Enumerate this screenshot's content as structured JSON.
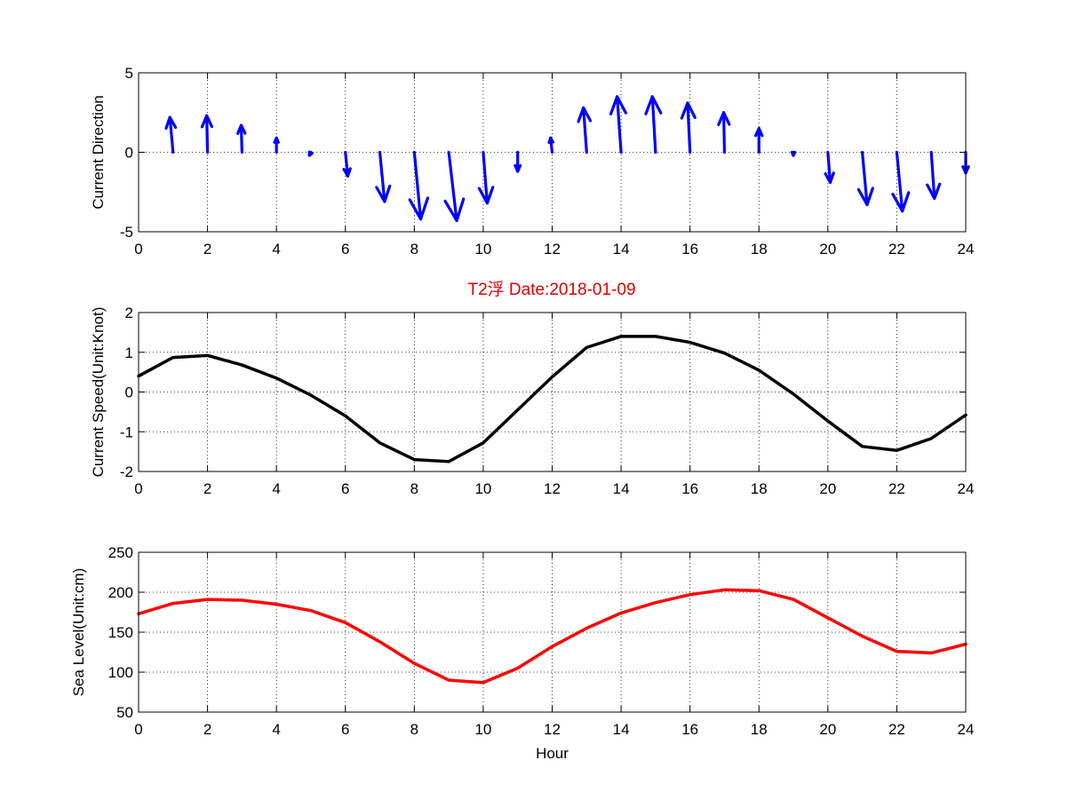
{
  "figure": {
    "title": "T2浮   Date:2018-01-09",
    "title_color": "#e00000",
    "background": "#ffffff"
  },
  "chart_data": [
    {
      "type": "quiver",
      "ylabel": "Current Direction",
      "xlabel": "",
      "xlim": [
        0,
        24
      ],
      "ylim": [
        -5,
        5
      ],
      "xticks": [
        "0",
        "2",
        "4",
        "6",
        "8",
        "10",
        "12",
        "14",
        "16",
        "18",
        "20",
        "22",
        "24"
      ],
      "yticks": [
        "-5",
        "0",
        "5"
      ],
      "grid": true,
      "color": "#0000ff",
      "x": [
        1,
        2,
        3,
        4,
        5,
        6,
        7,
        8,
        9,
        10,
        11,
        12,
        13,
        14,
        15,
        16,
        17,
        18,
        19,
        20,
        21,
        22,
        23,
        24
      ],
      "u": [
        -0.2,
        -0.05,
        -0.05,
        0.0,
        -0.1,
        0.15,
        0.3,
        0.4,
        0.5,
        0.25,
        0.0,
        -0.1,
        -0.2,
        -0.25,
        -0.2,
        -0.15,
        -0.05,
        0.0,
        0.0,
        0.15,
        0.3,
        0.35,
        0.2,
        0.0
      ],
      "v": [
        2.2,
        2.3,
        1.7,
        0.9,
        -0.2,
        -1.5,
        -3.1,
        -4.2,
        -4.3,
        -3.2,
        -1.2,
        0.9,
        2.8,
        3.5,
        3.5,
        3.1,
        2.5,
        1.5,
        -0.2,
        -1.9,
        -3.3,
        -3.7,
        -2.9,
        -1.3
      ]
    },
    {
      "type": "line",
      "ylabel": "Current Speed(Unit:Knot)",
      "xlabel": "",
      "xlim": [
        0,
        24
      ],
      "ylim": [
        -2,
        2
      ],
      "xticks": [
        "0",
        "2",
        "4",
        "6",
        "8",
        "10",
        "12",
        "14",
        "16",
        "18",
        "20",
        "22",
        "24"
      ],
      "yticks": [
        "-2",
        "-1",
        "0",
        "1",
        "2"
      ],
      "grid": true,
      "color": "#000000",
      "x": [
        0,
        1,
        2,
        3,
        4,
        5,
        6,
        7,
        8,
        9,
        10,
        11,
        12,
        13,
        14,
        15,
        16,
        17,
        18,
        19,
        20,
        21,
        22,
        23,
        24
      ],
      "y": [
        0.4,
        0.87,
        0.92,
        0.68,
        0.35,
        -0.08,
        -0.6,
        -1.28,
        -1.7,
        -1.75,
        -1.28,
        -0.45,
        0.38,
        1.12,
        1.4,
        1.4,
        1.25,
        0.98,
        0.55,
        -0.05,
        -0.73,
        -1.37,
        -1.47,
        -1.17,
        -0.58
      ]
    },
    {
      "type": "line",
      "ylabel": "Sea Level(Unit:cm)",
      "xlabel": "Hour",
      "xlim": [
        0,
        24
      ],
      "ylim": [
        50,
        250
      ],
      "xticks": [
        "0",
        "2",
        "4",
        "6",
        "8",
        "10",
        "12",
        "14",
        "16",
        "18",
        "20",
        "22",
        "24"
      ],
      "yticks": [
        "50",
        "100",
        "150",
        "200",
        "250"
      ],
      "grid": true,
      "color": "#ff0000",
      "x": [
        0,
        1,
        2,
        3,
        4,
        5,
        6,
        7,
        8,
        9,
        10,
        11,
        12,
        13,
        14,
        15,
        16,
        17,
        18,
        19,
        20,
        21,
        22,
        23,
        24
      ],
      "y": [
        173,
        186,
        191,
        190,
        185,
        177,
        162,
        138,
        111,
        90,
        87,
        105,
        132,
        155,
        174,
        187,
        197,
        203,
        202,
        191,
        168,
        145,
        126,
        124,
        135
      ]
    }
  ]
}
